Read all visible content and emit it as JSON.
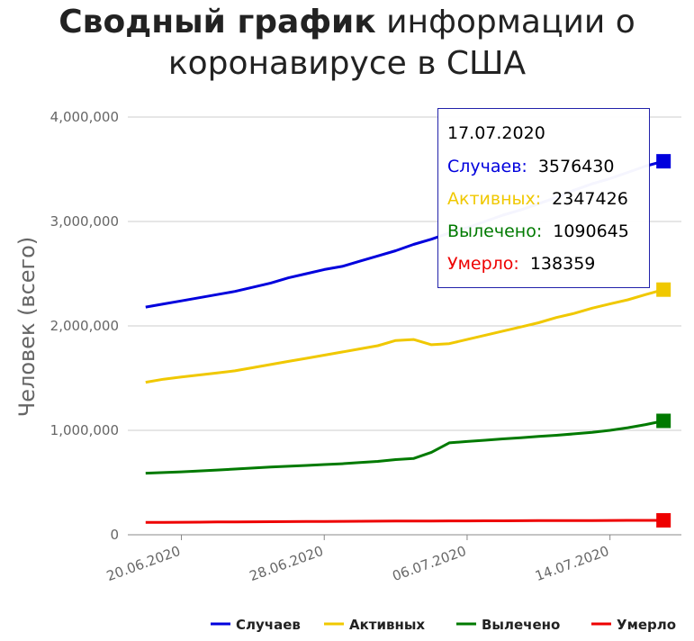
{
  "title_bold": "Сводный график",
  "title_rest_line1": " информации о",
  "title_line2": "коронавирусе в США",
  "colors": {
    "cases": "#0000dd",
    "active": "#f0c800",
    "recovered": "#007a00",
    "deaths": "#ee0000",
    "grid": "#cccccc",
    "axis": "#888888"
  },
  "chart_data": {
    "type": "line",
    "title": "Сводный график информации о коронавирусе в США",
    "ylabel": "Человек (всего)",
    "ylim": [
      0,
      4000000
    ],
    "yticks": [
      0,
      1000000,
      2000000,
      3000000,
      4000000
    ],
    "ytick_labels": [
      "0",
      "1,000,000",
      "2,000,000",
      "3,000,000",
      "4,000,000"
    ],
    "xticks": [
      "2020-06-20",
      "2020-06-28",
      "2020-07-06",
      "2020-07-14"
    ],
    "xtick_labels": [
      "20.06.2020",
      "28.06.2020",
      "06.07.2020",
      "14.07.2020"
    ],
    "x": [
      "2020-06-18",
      "2020-06-19",
      "2020-06-20",
      "2020-06-21",
      "2020-06-22",
      "2020-06-23",
      "2020-06-24",
      "2020-06-25",
      "2020-06-26",
      "2020-06-27",
      "2020-06-28",
      "2020-06-29",
      "2020-06-30",
      "2020-07-01",
      "2020-07-02",
      "2020-07-03",
      "2020-07-04",
      "2020-07-05",
      "2020-07-06",
      "2020-07-07",
      "2020-07-08",
      "2020-07-09",
      "2020-07-10",
      "2020-07-11",
      "2020-07-12",
      "2020-07-13",
      "2020-07-14",
      "2020-07-15",
      "2020-07-16",
      "2020-07-17"
    ],
    "series": [
      {
        "name": "Случаев",
        "key": "cases",
        "values": [
          2180000,
          2210000,
          2240000,
          2270000,
          2300000,
          2330000,
          2370000,
          2410000,
          2460000,
          2500000,
          2540000,
          2570000,
          2620000,
          2670000,
          2720000,
          2780000,
          2830000,
          2890000,
          2940000,
          3000000,
          3060000,
          3110000,
          3170000,
          3230000,
          3300000,
          3360000,
          3410000,
          3470000,
          3530000,
          3576430
        ]
      },
      {
        "name": "Активных",
        "key": "active",
        "values": [
          1460000,
          1490000,
          1510000,
          1530000,
          1550000,
          1570000,
          1600000,
          1630000,
          1660000,
          1690000,
          1720000,
          1750000,
          1780000,
          1810000,
          1860000,
          1870000,
          1820000,
          1830000,
          1870000,
          1910000,
          1950000,
          1990000,
          2030000,
          2080000,
          2120000,
          2170000,
          2210000,
          2250000,
          2300000,
          2347426
        ]
      },
      {
        "name": "Вылечено",
        "key": "recovered",
        "values": [
          590000,
          596000,
          603000,
          611000,
          620000,
          629000,
          639000,
          648000,
          656000,
          664000,
          672000,
          680000,
          691000,
          703000,
          720000,
          730000,
          790000,
          880000,
          893000,
          905000,
          918000,
          929000,
          942000,
          953000,
          966000,
          980000,
          1000000,
          1025000,
          1055000,
          1090645
        ]
      },
      {
        "name": "Умерло",
        "key": "deaths",
        "values": [
          118000,
          119000,
          120000,
          121000,
          122000,
          123000,
          124000,
          125000,
          126000,
          127000,
          128000,
          128500,
          129000,
          130000,
          131000,
          131500,
          132000,
          132500,
          133000,
          133500,
          134000,
          134500,
          135000,
          135500,
          136000,
          136500,
          137000,
          137500,
          138000,
          138359
        ]
      }
    ],
    "legend_position": "bottom",
    "grid": true
  },
  "tooltip": {
    "date": "17.07.2020",
    "rows": [
      {
        "label": "Случаев:",
        "value": "3576430",
        "key": "cases"
      },
      {
        "label": "Активных:",
        "value": "2347426",
        "key": "active"
      },
      {
        "label": "Вылечено:",
        "value": "1090645",
        "key": "recovered"
      },
      {
        "label": "Умерло:",
        "value": "138359",
        "key": "deaths"
      }
    ]
  }
}
